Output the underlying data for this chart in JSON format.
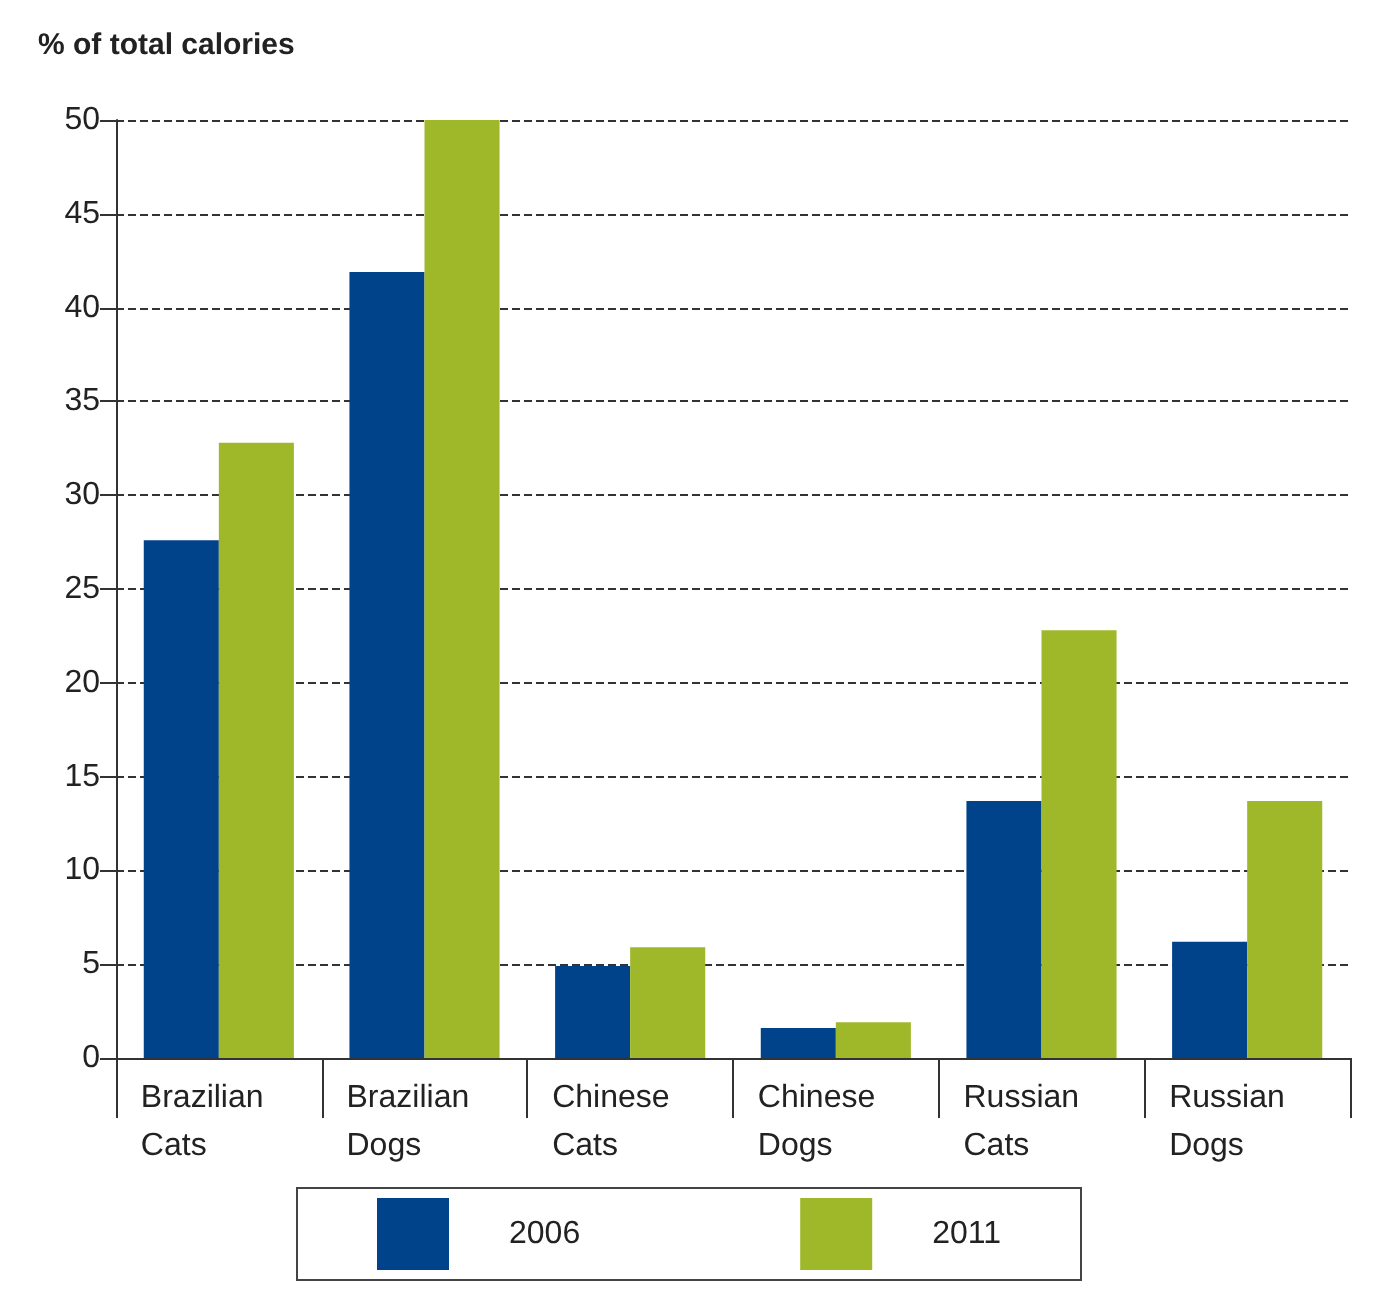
{
  "chart_data": {
    "type": "bar",
    "ylabel": "% of total calories",
    "categories": [
      "Brazilian\nCats",
      "Brazilian\nDogs",
      "Chinese\nCats",
      "Chinese\nDogs",
      "Russian\nCats",
      "Russian\nDogs"
    ],
    "series": [
      {
        "name": "2006",
        "color": "#00438a",
        "values": [
          27.6,
          41.9,
          4.9,
          1.6,
          13.7,
          6.2
        ]
      },
      {
        "name": "2011",
        "color": "#9fb82a",
        "values": [
          32.8,
          50,
          5.9,
          1.9,
          22.8,
          13.7
        ]
      }
    ],
    "ylim": [
      0,
      50
    ],
    "yticks": [
      0,
      5,
      10,
      15,
      20,
      25,
      30,
      35,
      40,
      45,
      50
    ],
    "grid": "y",
    "legend": "bottom"
  }
}
